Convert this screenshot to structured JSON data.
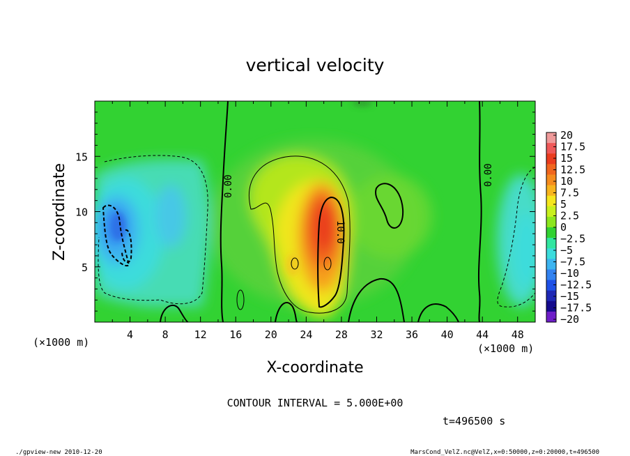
{
  "chart_data": {
    "type": "heatmap",
    "title": "vertical velocity",
    "xlabel": "X-coordinate",
    "ylabel": "Z-coordinate",
    "x_unit_label": "(×1000 m)",
    "y_unit_label": "(×1000 m)",
    "xlim": [
      0,
      50
    ],
    "ylim": [
      0,
      20
    ],
    "x_ticks": [
      4,
      8,
      12,
      16,
      20,
      24,
      28,
      32,
      36,
      40,
      44,
      48
    ],
    "y_ticks": [
      5,
      10,
      15
    ],
    "colorbar": {
      "levels": [
        20,
        17.5,
        15,
        12.5,
        10,
        7.5,
        5,
        2.5,
        0,
        -2.5,
        -5,
        -7.5,
        -10,
        -12.5,
        -15,
        -17.5,
        -20
      ],
      "labels": [
        "20",
        "17.5",
        "15",
        "12.5",
        "10",
        "7.5",
        "5",
        "2.5",
        "0",
        "−2.5",
        "−5",
        "−7.5",
        "−10",
        "−12.5",
        "−15",
        "−17.5",
        "−20"
      ],
      "colors": [
        "#ef9a9a",
        "#ef5858",
        "#ea3c1e",
        "#f0661e",
        "#f58c1e",
        "#f7b41e",
        "#f5e61e",
        "#c8f01e",
        "#8ce61e",
        "#32d232",
        "#32e6a0",
        "#3cdcdc",
        "#3cb4f0",
        "#3282f0",
        "#1e50e6",
        "#1e28b4",
        "#140a8c",
        "#6e1ec8"
      ]
    },
    "contour_labels": [
      {
        "text": "0.00",
        "x": 15.2,
        "z": 12.5
      },
      {
        "text": "10.0",
        "x": 27.8,
        "z": 8.0
      },
      {
        "text": "0.00",
        "x": 44.4,
        "z": 13.7
      }
    ],
    "contour_interval_text": "CONTOUR INTERVAL = 5.000E+00",
    "time_text": "t=496500 s"
  },
  "footer": {
    "left": "./gpview-new  2010-12-20",
    "right": "MarsCond_VelZ.nc@VelZ,x=0:50000,z=0:20000,t=496500"
  }
}
